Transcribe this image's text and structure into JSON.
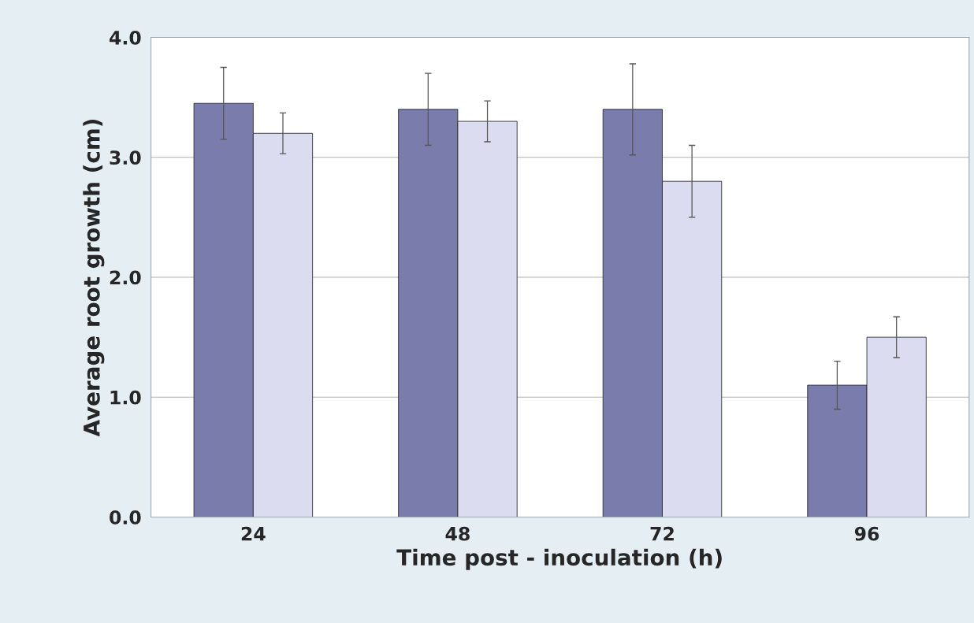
{
  "chart_data": {
    "type": "bar",
    "xlabel": "Time post - inoculation (h)",
    "ylabel": "Average root growth (cm)",
    "categories": [
      "24",
      "48",
      "72",
      "96"
    ],
    "series": [
      {
        "color": "#7a7dab",
        "values": [
          3.45,
          3.4,
          3.4,
          1.1
        ],
        "errors": [
          0.3,
          0.3,
          0.38,
          0.2
        ]
      },
      {
        "color": "#dcdcf0",
        "values": [
          3.2,
          3.3,
          2.8,
          1.5
        ],
        "errors": [
          0.17,
          0.17,
          0.3,
          0.17
        ]
      }
    ],
    "ylim": [
      0,
      4
    ],
    "yticks": [
      {
        "value": 0,
        "label": "0.0"
      },
      {
        "value": 1,
        "label": "1.0"
      },
      {
        "value": 2,
        "label": "2.0"
      },
      {
        "value": 3,
        "label": "3.0"
      },
      {
        "value": 4,
        "label": "4.0"
      }
    ],
    "grid": "y",
    "legend": false
  }
}
